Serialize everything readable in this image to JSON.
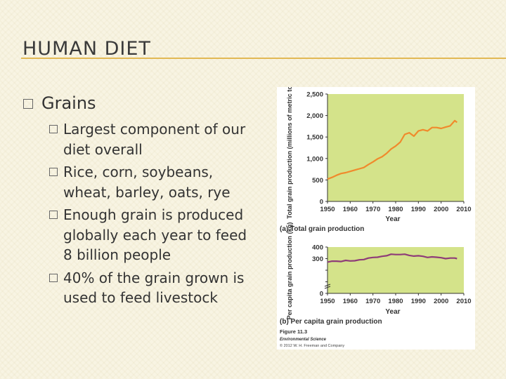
{
  "slide": {
    "title": "HUMAN DIET",
    "bullet": "Grains",
    "sub_bullets": [
      "Largest component of our diet overall",
      "Rice, corn, soybeans, wheat, barley, oats, rye",
      "Enough grain is produced globally each year to feed 8 billion people",
      "40% of the grain grown is used to feed livestock"
    ]
  },
  "figure": {
    "caption_number": "Figure 11.3",
    "caption_book": "Environmental Science",
    "caption_copyright": "© 2012 W. H. Freeman and Company",
    "colors": {
      "panel": "#d4e38a",
      "line_a": "#f08a2c",
      "line_b": "#8e3c78",
      "axis": "#333333"
    }
  },
  "chart_data": [
    {
      "type": "line",
      "caption": "(a) Total grain production",
      "xlabel": "Year",
      "ylabel": "Total grain production (millions of metric tons)",
      "xlim": [
        1950,
        2010
      ],
      "ylim": [
        0,
        2500
      ],
      "x_ticks": [
        1950,
        1960,
        1970,
        1980,
        1990,
        2000,
        2010
      ],
      "y_ticks": [
        0,
        500,
        1000,
        1500,
        2000,
        2500
      ],
      "y_tick_labels": [
        "0",
        "500",
        "1,000",
        "1,500",
        "2,000",
        "2,500"
      ],
      "x": [
        1950,
        1952,
        1954,
        1956,
        1958,
        1960,
        1962,
        1964,
        1966,
        1968,
        1970,
        1972,
        1974,
        1976,
        1978,
        1980,
        1982,
        1984,
        1986,
        1988,
        1990,
        1992,
        1994,
        1996,
        1998,
        2000,
        2002,
        2004,
        2006,
        2007
      ],
      "y": [
        520,
        560,
        610,
        650,
        670,
        700,
        730,
        760,
        790,
        860,
        920,
        990,
        1040,
        1120,
        1220,
        1290,
        1380,
        1560,
        1600,
        1520,
        1640,
        1670,
        1640,
        1720,
        1720,
        1700,
        1730,
        1760,
        1880,
        1840
      ],
      "grid": false
    },
    {
      "type": "line",
      "caption": "(b) Per capita grain production",
      "xlabel": "Year",
      "ylabel": "Per capita grain production (kg)",
      "xlim": [
        1950,
        2010
      ],
      "ylim": [
        0,
        400
      ],
      "axis_break": true,
      "x_ticks": [
        1950,
        1960,
        1970,
        1980,
        1990,
        2000,
        2010
      ],
      "y_ticks": [
        0,
        100,
        200,
        300,
        400
      ],
      "y_tick_labels": [
        "0",
        "",
        "",
        "300",
        "400"
      ],
      "x": [
        1950,
        1952,
        1954,
        1956,
        1958,
        1960,
        1962,
        1964,
        1966,
        1968,
        1970,
        1972,
        1974,
        1976,
        1978,
        1980,
        1982,
        1984,
        1986,
        1988,
        1990,
        1992,
        1994,
        1996,
        1998,
        2000,
        2002,
        2004,
        2006,
        2007
      ],
      "y": [
        270,
        278,
        278,
        275,
        285,
        280,
        282,
        290,
        292,
        305,
        310,
        312,
        320,
        325,
        338,
        335,
        335,
        338,
        328,
        322,
        325,
        320,
        310,
        315,
        312,
        308,
        300,
        305,
        305,
        300
      ],
      "grid": false
    }
  ]
}
